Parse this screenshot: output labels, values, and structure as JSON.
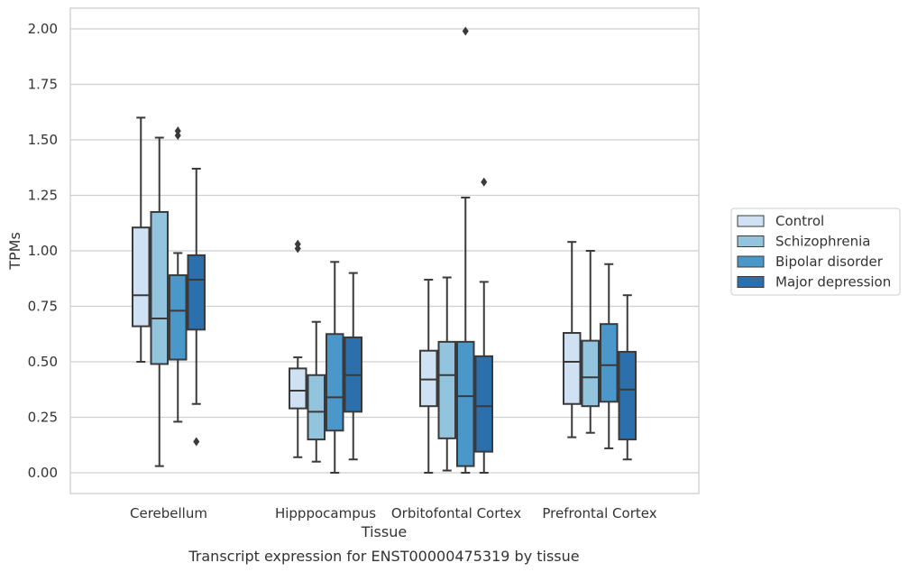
{
  "caption": "Transcript expression for ENST00000475319 by tissue",
  "chart_data": {
    "type": "boxplot",
    "xlabel": "Tissue",
    "ylabel": "TPMs",
    "ylim": [
      -0.1,
      2.1
    ],
    "yticks": [
      "0.00",
      "0.25",
      "0.50",
      "0.75",
      "1.00",
      "1.25",
      "1.50",
      "1.75",
      "2.00"
    ],
    "grid": "horizontal",
    "legend_position": "right",
    "categories": [
      "Cerebellum",
      "Hipppocampus",
      "Orbitofontal Cortex",
      "Prefrontal Cortex"
    ],
    "series": [
      {
        "name": "Control",
        "color": "#cfe1f2",
        "boxes": [
          {
            "whisker_low": 0.5,
            "q1": 0.66,
            "median": 0.8,
            "q3": 1.105,
            "whisker_high": 1.6,
            "outliers": []
          },
          {
            "whisker_low": 0.07,
            "q1": 0.29,
            "median": 0.37,
            "q3": 0.47,
            "whisker_high": 0.52,
            "outliers": [
              1.01,
              1.03
            ]
          },
          {
            "whisker_low": 0.0,
            "q1": 0.3,
            "median": 0.42,
            "q3": 0.55,
            "whisker_high": 0.87,
            "outliers": []
          },
          {
            "whisker_low": 0.16,
            "q1": 0.31,
            "median": 0.5,
            "q3": 0.63,
            "whisker_high": 1.04,
            "outliers": []
          }
        ]
      },
      {
        "name": "Schizophrenia",
        "color": "#93c4de",
        "boxes": [
          {
            "whisker_low": 0.03,
            "q1": 0.49,
            "median": 0.695,
            "q3": 1.175,
            "whisker_high": 1.51,
            "outliers": []
          },
          {
            "whisker_low": 0.05,
            "q1": 0.15,
            "median": 0.275,
            "q3": 0.44,
            "whisker_high": 0.68,
            "outliers": []
          },
          {
            "whisker_low": 0.01,
            "q1": 0.155,
            "median": 0.44,
            "q3": 0.59,
            "whisker_high": 0.88,
            "outliers": []
          },
          {
            "whisker_low": 0.18,
            "q1": 0.3,
            "median": 0.43,
            "q3": 0.595,
            "whisker_high": 1.0,
            "outliers": []
          }
        ]
      },
      {
        "name": "Bipolar disorder",
        "color": "#4a98c9",
        "boxes": [
          {
            "whisker_low": 0.23,
            "q1": 0.51,
            "median": 0.73,
            "q3": 0.89,
            "whisker_high": 0.99,
            "outliers": [
              1.52,
              1.54
            ]
          },
          {
            "whisker_low": 0.0,
            "q1": 0.19,
            "median": 0.34,
            "q3": 0.625,
            "whisker_high": 0.95,
            "outliers": []
          },
          {
            "whisker_low": 0.0,
            "q1": 0.03,
            "median": 0.345,
            "q3": 0.59,
            "whisker_high": 1.24,
            "outliers": [
              1.99
            ]
          },
          {
            "whisker_low": 0.11,
            "q1": 0.32,
            "median": 0.485,
            "q3": 0.67,
            "whisker_high": 0.94,
            "outliers": []
          }
        ]
      },
      {
        "name": "Major depression",
        "color": "#2c6fad",
        "boxes": [
          {
            "whisker_low": 0.31,
            "q1": 0.645,
            "median": 0.87,
            "q3": 0.98,
            "whisker_high": 1.37,
            "outliers": [
              0.14
            ]
          },
          {
            "whisker_low": 0.06,
            "q1": 0.275,
            "median": 0.44,
            "q3": 0.61,
            "whisker_high": 0.9,
            "outliers": []
          },
          {
            "whisker_low": 0.0,
            "q1": 0.095,
            "median": 0.3,
            "q3": 0.525,
            "whisker_high": 0.86,
            "outliers": [
              1.31
            ]
          },
          {
            "whisker_low": 0.06,
            "q1": 0.15,
            "median": 0.375,
            "q3": 0.545,
            "whisker_high": 0.8,
            "outliers": []
          }
        ]
      }
    ]
  }
}
